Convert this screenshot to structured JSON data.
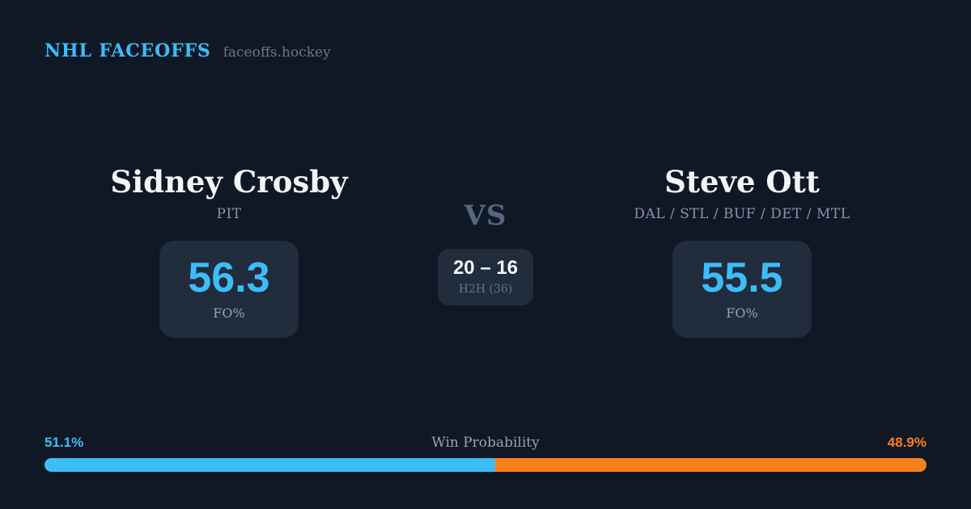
{
  "brand": {
    "title": "NHL FACEOFFS",
    "domain": "faceoffs.hockey",
    "accent_color": "#3cbdf8"
  },
  "players": {
    "left": {
      "name": "Sidney Crosby",
      "teams": "PIT",
      "fo_pct": "56.3",
      "stat_label": "FO%"
    },
    "right": {
      "name": "Steve Ott",
      "teams": "DAL / STL / BUF / DET / MTL",
      "fo_pct": "55.5",
      "stat_label": "FO%"
    }
  },
  "matchup": {
    "vs_label": "VS",
    "h2h_score": "20 – 16",
    "h2h_label": "H2H (36)"
  },
  "win_probability": {
    "title": "Win Probability",
    "left_pct_label": "51.1%",
    "right_pct_label": "48.9%",
    "left_value": 51.1,
    "right_value": 48.9,
    "left_color": "#3cbdf8",
    "right_color": "#f97f1a"
  },
  "colors": {
    "background": "#101826",
    "card_background": "#212c3d"
  }
}
